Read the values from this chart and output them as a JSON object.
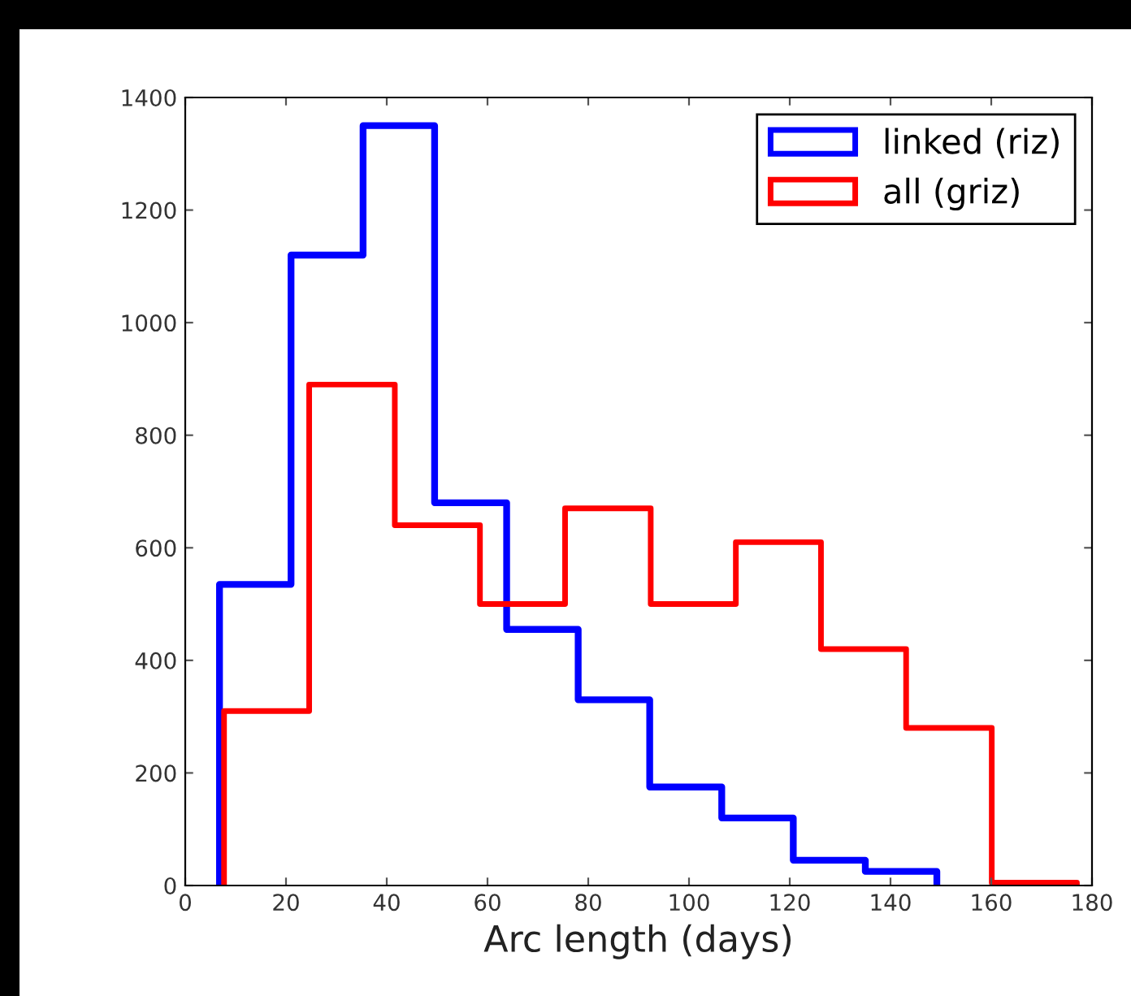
{
  "chart_data": {
    "type": "histogram",
    "xlabel": "Arc length (days)",
    "bins": [
      6.8,
      21.0,
      35.3,
      49.5,
      63.8,
      78.0,
      92.2,
      106.5,
      120.7,
      135.0,
      149.2
    ],
    "series": [
      {
        "name": "linked (riz)",
        "color": "#0000ff",
        "values": [
          535,
          1120,
          1350,
          680,
          455,
          330,
          175,
          120,
          45,
          25
        ]
      },
      {
        "name": "all (griz)",
        "color": "#ff0000",
        "bins": [
          7.7,
          24.6,
          41.6,
          58.5,
          75.4,
          92.4,
          109.3,
          126.2,
          143.1,
          160.1,
          177.0
        ],
        "values": [
          310,
          890,
          640,
          500,
          670,
          500,
          610,
          420,
          280,
          5
        ]
      }
    ],
    "xlim": [
      0,
      180
    ],
    "ylim": [
      0,
      1400
    ],
    "xticks": [
      0,
      20,
      40,
      60,
      80,
      100,
      120,
      140,
      160,
      180
    ],
    "yticks": [
      0,
      200,
      400,
      600,
      800,
      1000,
      1200,
      1400
    ],
    "legend": "top right",
    "grid": false
  }
}
